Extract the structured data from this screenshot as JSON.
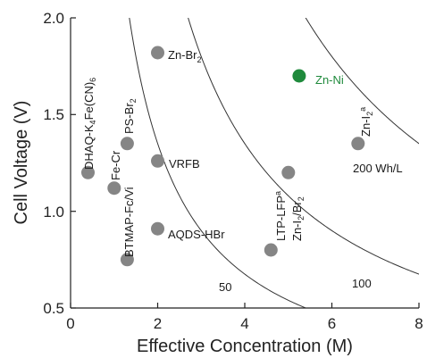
{
  "chart_data": {
    "type": "scatter",
    "xlabel": "Effective Concentration (M)",
    "ylabel": "Cell Voltage (V)",
    "xlim": [
      0,
      8
    ],
    "ylim": [
      0.5,
      2.0
    ],
    "x_ticks": [
      "0",
      "2",
      "4",
      "6",
      "8"
    ],
    "y_ticks": [
      "0.5",
      "1.0",
      "1.5",
      "2.0"
    ],
    "colors": {
      "default_point": "#858585",
      "highlight_point": "#1f8a3c",
      "curve": "#333333"
    },
    "points": [
      {
        "label": "DHAQ-K4Fe(CN)6",
        "x": 0.4,
        "y": 1.2,
        "highlight": false
      },
      {
        "label": "Fe-Cr",
        "x": 1.0,
        "y": 1.12,
        "highlight": false
      },
      {
        "label": "BTMAP-Fc/Vi",
        "x": 1.3,
        "y": 0.75,
        "highlight": false
      },
      {
        "label": "PS-Br2",
        "x": 1.3,
        "y": 1.35,
        "highlight": false
      },
      {
        "label": "Zn-Br2",
        "x": 2.0,
        "y": 1.82,
        "highlight": false
      },
      {
        "label": "VRFB",
        "x": 2.0,
        "y": 1.26,
        "highlight": false
      },
      {
        "label": "AQDS-HBr",
        "x": 2.0,
        "y": 0.91,
        "highlight": false
      },
      {
        "label": "LTP-LFPa",
        "x": 4.6,
        "y": 0.8,
        "highlight": false
      },
      {
        "label": "Zn-I2/Br2",
        "x": 5.0,
        "y": 1.2,
        "highlight": false
      },
      {
        "label": "Zn-Ni",
        "x": 5.25,
        "y": 1.7,
        "highlight": true
      },
      {
        "label": "Zn-I2a",
        "x": 6.6,
        "y": 1.35,
        "highlight": false
      }
    ],
    "energy_density_curves": [
      {
        "label": "50",
        "k": 2.7
      },
      {
        "label": "100",
        "k": 5.4
      },
      {
        "label": "200 Wh/L",
        "k": 10.8
      }
    ]
  }
}
